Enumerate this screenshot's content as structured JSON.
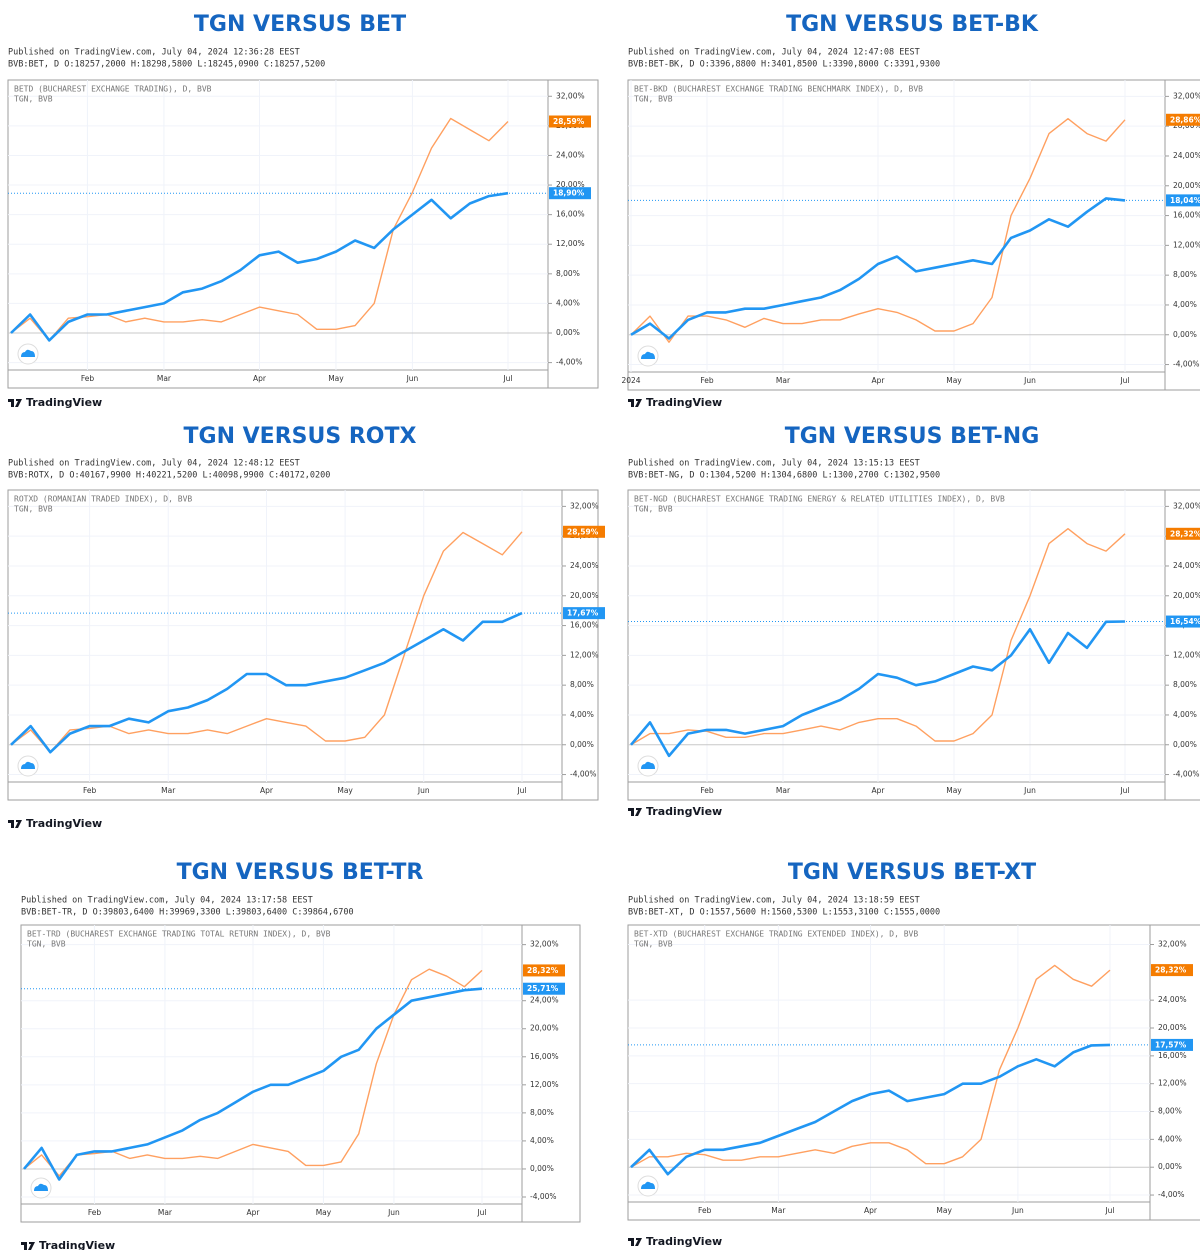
{
  "chart_data": [
    {
      "type": "line",
      "title": "TGN VERSUS BET",
      "published": "Published on TradingView.com, July 04, 2024 12:36:28 EEST",
      "ohlc": "BVB:BET, D O:18257,2000 H:18298,5800 L:18245,0900 C:18257,5200",
      "footer": "TradingView",
      "categories": [
        null,
        null,
        null,
        null,
        "Feb",
        null,
        null,
        null,
        "Mar",
        null,
        null,
        null,
        null,
        "Apr",
        null,
        null,
        null,
        "May",
        null,
        null,
        null,
        "Jun",
        null,
        null,
        null,
        null,
        "Jul"
      ],
      "ylim": [
        -5,
        34.2
      ],
      "yticks": [
        {
          "value": -4,
          "label": "-4,00%"
        },
        {
          "value": 0,
          "label": "0,00%"
        },
        {
          "value": 4,
          "label": "4,00%"
        },
        {
          "value": 8,
          "label": "8,00%"
        },
        {
          "value": 12,
          "label": "12,00%"
        },
        {
          "value": 16,
          "label": "16,00%"
        },
        {
          "value": 20,
          "label": "20,00%"
        },
        {
          "value": 24,
          "label": "24,00%"
        },
        {
          "value": 28,
          "label": "28,00%"
        },
        {
          "value": 32,
          "label": "32,00%"
        }
      ],
      "series": [
        {
          "name": "BETD (BUCHAREST EXCHANGE TRADING), D, BVB",
          "color": "#2196f3",
          "last_label": "18,90%",
          "values": [
            0,
            2.5,
            -1,
            1.5,
            2.5,
            2.5,
            3,
            3.5,
            4,
            5.5,
            6,
            7,
            8.5,
            10.5,
            11,
            9.5,
            10,
            11,
            12.5,
            11.5,
            14,
            16,
            18,
            15.5,
            17.5,
            18.5,
            18.9
          ]
        },
        {
          "name": "TGN, BVB",
          "color": "#f57c00",
          "last_label": "28,59%",
          "values": [
            0,
            2,
            -1,
            2,
            2.2,
            2.5,
            1.5,
            2,
            1.5,
            1.5,
            1.8,
            1.5,
            2.5,
            3.5,
            3,
            2.5,
            0.5,
            0.5,
            1,
            4,
            14,
            19,
            25,
            29,
            27.5,
            26,
            28.59
          ]
        }
      ]
    },
    {
      "type": "line",
      "title": "TGN VERSUS BET-BK",
      "published": "Published on TradingView.com, July 04, 2024 12:47:08 EEST",
      "ohlc": "BVB:BET-BK, D O:3396,8800 H:3401,8500 L:3390,8000 C:3391,9300",
      "footer": "TradingView",
      "categories": [
        "2024",
        null,
        null,
        null,
        "Feb",
        null,
        null,
        null,
        "Mar",
        null,
        null,
        null,
        null,
        "Apr",
        null,
        null,
        null,
        "May",
        null,
        null,
        null,
        "Jun",
        null,
        null,
        null,
        null,
        "Jul"
      ],
      "ylim": [
        -5,
        34.2
      ],
      "yticks": [
        {
          "value": -4,
          "label": "-4,00%"
        },
        {
          "value": 0,
          "label": "0,00%"
        },
        {
          "value": 4,
          "label": "4,00%"
        },
        {
          "value": 8,
          "label": "8,00%"
        },
        {
          "value": 12,
          "label": "12,00%"
        },
        {
          "value": 16,
          "label": "16,00%"
        },
        {
          "value": 20,
          "label": "20,00%"
        },
        {
          "value": 24,
          "label": "24,00%"
        },
        {
          "value": 28,
          "label": "28,00%"
        },
        {
          "value": 32,
          "label": "32,00%"
        }
      ],
      "series": [
        {
          "name": "BET-BKD (BUCHAREST EXCHANGE TRADING BENCHMARK INDEX), D, BVB",
          "color": "#2196f3",
          "last_label": "18,04%",
          "values": [
            0,
            1.5,
            -0.5,
            2,
            3,
            3,
            3.5,
            3.5,
            4,
            4.5,
            5,
            6,
            7.5,
            9.5,
            10.5,
            8.5,
            9,
            9.5,
            10,
            9.5,
            13,
            14,
            15.5,
            14.5,
            16.5,
            18.3,
            18.04
          ]
        },
        {
          "name": "TGN, BVB",
          "color": "#f57c00",
          "last_label": "28,86%",
          "values": [
            0,
            2.5,
            -1,
            2.5,
            2.5,
            2,
            1,
            2.2,
            1.5,
            1.5,
            2,
            2,
            2.8,
            3.5,
            3,
            2,
            0.5,
            0.5,
            1.5,
            5,
            16,
            21,
            27,
            29,
            27,
            26,
            28.86
          ]
        }
      ]
    },
    {
      "type": "line",
      "title": "TGN VERSUS ROTX",
      "published": "Published on TradingView.com, July 04, 2024 12:48:12 EEST",
      "ohlc": "BVB:ROTX, D O:40167,9900 H:40221,5200 L:40098,9900 C:40172,0200",
      "footer": "TradingView",
      "categories": [
        null,
        null,
        null,
        null,
        "Feb",
        null,
        null,
        null,
        "Mar",
        null,
        null,
        null,
        null,
        "Apr",
        null,
        null,
        null,
        "May",
        null,
        null,
        null,
        "Jun",
        null,
        null,
        null,
        null,
        "Jul"
      ],
      "ylim": [
        -5,
        34.2
      ],
      "yticks": [
        {
          "value": -4,
          "label": "-4,00%"
        },
        {
          "value": 0,
          "label": "0,00%"
        },
        {
          "value": 4,
          "label": "4,00%"
        },
        {
          "value": 8,
          "label": "8,00%"
        },
        {
          "value": 12,
          "label": "12,00%"
        },
        {
          "value": 16,
          "label": "16,00%"
        },
        {
          "value": 20,
          "label": "20,00%"
        },
        {
          "value": 24,
          "label": "24,00%"
        },
        {
          "value": 28,
          "label": "28,00%"
        },
        {
          "value": 32,
          "label": "32,00%"
        }
      ],
      "series": [
        {
          "name": "ROTXD (ROMANIAN TRADED INDEX), D, BVB",
          "color": "#2196f3",
          "last_label": "17,67%",
          "values": [
            0,
            2.5,
            -1,
            1.5,
            2.5,
            2.5,
            3.5,
            3,
            4.5,
            5,
            6,
            7.5,
            9.5,
            9.5,
            8,
            8,
            8.5,
            9,
            10,
            11,
            12.5,
            14,
            15.5,
            14,
            16.5,
            16.5,
            17.67
          ]
        },
        {
          "name": "TGN, BVB",
          "color": "#f57c00",
          "last_label": "28,59%",
          "values": [
            0,
            2,
            -1,
            2,
            2.2,
            2.5,
            1.5,
            2,
            1.5,
            1.5,
            2,
            1.5,
            2.5,
            3.5,
            3,
            2.5,
            0.5,
            0.5,
            1,
            4,
            12,
            20,
            26,
            28.5,
            27,
            25.5,
            28.59
          ]
        }
      ]
    },
    {
      "type": "line",
      "title": "TGN VERSUS BET-NG",
      "published": "Published on TradingView.com, July 04, 2024 13:15:13 EEST",
      "ohlc": "BVB:BET-NG, D O:1304,5200 H:1304,6800 L:1300,2700 C:1302,9500",
      "footer": "TradingView",
      "categories": [
        null,
        null,
        null,
        null,
        "Feb",
        null,
        null,
        null,
        "Mar",
        null,
        null,
        null,
        null,
        "Apr",
        null,
        null,
        null,
        "May",
        null,
        null,
        null,
        "Jun",
        null,
        null,
        null,
        null,
        "Jul"
      ],
      "ylim": [
        -5,
        34.2
      ],
      "yticks": [
        {
          "value": -4,
          "label": "-4,00%"
        },
        {
          "value": 0,
          "label": "0,00%"
        },
        {
          "value": 4,
          "label": "4,00%"
        },
        {
          "value": 8,
          "label": "8,00%"
        },
        {
          "value": 12,
          "label": "12,00%"
        },
        {
          "value": 16,
          "label": "16,00%"
        },
        {
          "value": 20,
          "label": "20,00%"
        },
        {
          "value": 24,
          "label": "24,00%"
        },
        {
          "value": 28,
          "label": "28,00%"
        },
        {
          "value": 32,
          "label": "32,00%"
        }
      ],
      "series": [
        {
          "name": "BET-NGD (BUCHAREST EXCHANGE TRADING ENERGY & RELATED UTILITIES INDEX), D, BVB",
          "color": "#2196f3",
          "last_label": "16,54%",
          "values": [
            0,
            3,
            -1.5,
            1.5,
            2,
            2,
            1.5,
            2,
            2.5,
            4,
            5,
            6,
            7.5,
            9.5,
            9,
            8,
            8.5,
            9.5,
            10.5,
            10,
            12,
            15.5,
            11,
            15,
            13,
            16.5,
            16.54
          ]
        },
        {
          "name": "TGN, BVB",
          "color": "#f57c00",
          "last_label": "28,32%",
          "values": [
            0,
            1.5,
            1.5,
            2,
            1.8,
            1,
            1,
            1.5,
            1.5,
            2,
            2.5,
            2,
            3,
            3.5,
            3.5,
            2.5,
            0.5,
            0.5,
            1.5,
            4,
            14,
            20,
            27,
            29,
            27,
            26,
            28.32
          ]
        }
      ]
    },
    {
      "type": "line",
      "title": "TGN VERSUS BET-TR",
      "published": "Published on TradingView.com, July 04, 2024 13:17:58 EEST",
      "ohlc": "BVB:BET-TR, D O:39803,6400 H:39969,3300 L:39803,6400 C:39864,6700",
      "footer": "TradingView",
      "categories": [
        null,
        null,
        null,
        null,
        "Feb",
        null,
        null,
        null,
        "Mar",
        null,
        null,
        null,
        null,
        "Apr",
        null,
        null,
        null,
        "May",
        null,
        null,
        null,
        "Jun",
        null,
        null,
        null,
        null,
        "Jul"
      ],
      "ylim": [
        -5,
        34.8
      ],
      "yticks": [
        {
          "value": -4,
          "label": "-4,00%"
        },
        {
          "value": 0,
          "label": "0,00%"
        },
        {
          "value": 4,
          "label": "4,00%"
        },
        {
          "value": 8,
          "label": "8,00%"
        },
        {
          "value": 12,
          "label": "12,00%"
        },
        {
          "value": 16,
          "label": "16,00%"
        },
        {
          "value": 20,
          "label": "20,00%"
        },
        {
          "value": 24,
          "label": "24,00%"
        },
        {
          "value": 32,
          "label": "32,00%"
        }
      ],
      "series": [
        {
          "name": "BET-TRD (BUCHAREST EXCHANGE TRADING TOTAL RETURN INDEX), D, BVB",
          "color": "#2196f3",
          "last_label": "25,71%",
          "values": [
            0,
            3,
            -1.5,
            2,
            2.5,
            2.5,
            3,
            3.5,
            4.5,
            5.5,
            7,
            8,
            9.5,
            11,
            12,
            12,
            13,
            14,
            16,
            17,
            20,
            22,
            24,
            24.5,
            25,
            25.5,
            25.71
          ]
        },
        {
          "name": "TGN, BVB",
          "color": "#f57c00",
          "last_label": "28,32%",
          "values": [
            0,
            2,
            -1,
            2,
            2.2,
            2.5,
            1.5,
            2,
            1.5,
            1.5,
            1.8,
            1.5,
            2.5,
            3.5,
            3,
            2.5,
            0.5,
            0.5,
            1,
            5,
            15,
            22,
            27,
            28.5,
            27.5,
            26,
            28.32
          ]
        }
      ]
    },
    {
      "type": "line",
      "title": "TGN VERSUS BET-XT",
      "published": "Published on TradingView.com, July 04, 2024 13:18:59 EEST",
      "ohlc": "BVB:BET-XT, D O:1557,5600 H:1560,5300 L:1553,3100 C:1555,0000",
      "footer": "TradingView",
      "categories": [
        null,
        null,
        null,
        null,
        "Feb",
        null,
        null,
        null,
        "Mar",
        null,
        null,
        null,
        null,
        "Apr",
        null,
        null,
        null,
        "May",
        null,
        null,
        null,
        "Jun",
        null,
        null,
        null,
        null,
        "Jul"
      ],
      "ylim": [
        -5,
        34.8
      ],
      "yticks": [
        {
          "value": -4,
          "label": "-4,00%"
        },
        {
          "value": 0,
          "label": "0,00%"
        },
        {
          "value": 4,
          "label": "4,00%"
        },
        {
          "value": 8,
          "label": "8,00%"
        },
        {
          "value": 12,
          "label": "12,00%"
        },
        {
          "value": 16,
          "label": "16,00%"
        },
        {
          "value": 20,
          "label": "20,00%"
        },
        {
          "value": 24,
          "label": "24,00%"
        },
        {
          "value": 32,
          "label": "32,00%"
        }
      ],
      "series": [
        {
          "name": "BET-XTD (BUCHAREST EXCHANGE TRADING EXTENDED INDEX), D, BVB",
          "color": "#2196f3",
          "last_label": "17,57%",
          "values": [
            0,
            2.5,
            -1,
            1.5,
            2.5,
            2.5,
            3,
            3.5,
            4.5,
            5.5,
            6.5,
            8,
            9.5,
            10.5,
            11,
            9.5,
            10,
            10.5,
            12,
            12,
            13,
            14.5,
            15.5,
            14.5,
            16.5,
            17.5,
            17.57
          ]
        },
        {
          "name": "TGN, BVB",
          "color": "#f57c00",
          "last_label": "28,32%",
          "values": [
            0,
            1.5,
            1.5,
            2,
            1.8,
            1,
            1,
            1.5,
            1.5,
            2,
            2.5,
            2,
            3,
            3.5,
            3.5,
            2.5,
            0.5,
            0.5,
            1.5,
            4,
            14,
            20,
            27,
            29,
            27,
            26,
            28.32
          ]
        }
      ]
    }
  ]
}
